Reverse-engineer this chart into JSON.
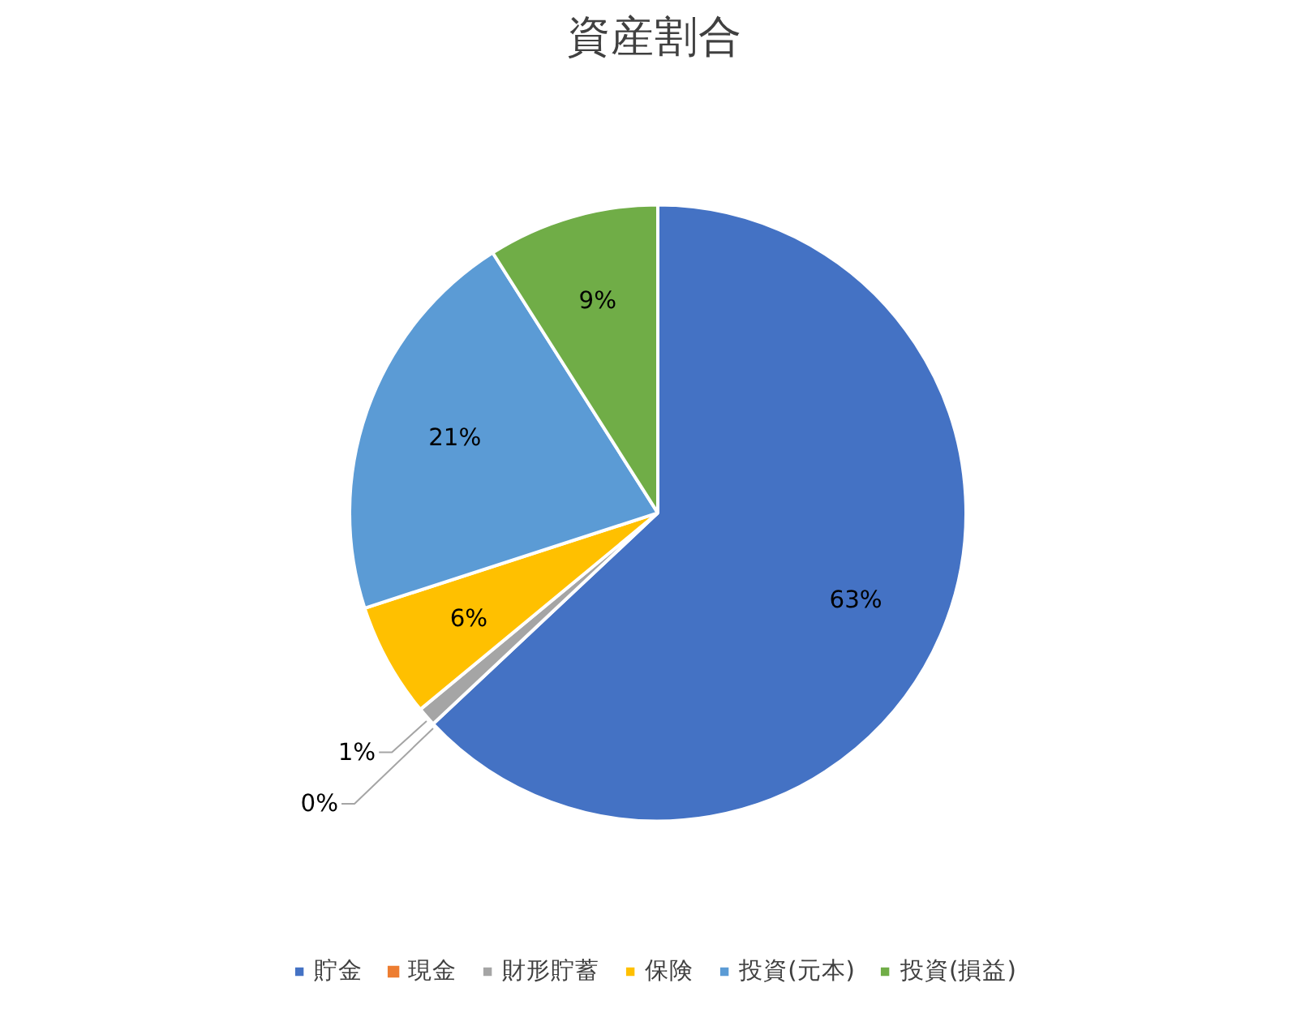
{
  "chart_data": {
    "type": "pie",
    "title": "資産割合",
    "categories": [
      "貯金",
      "現金",
      "財形貯蓄",
      "保険",
      "投資(元本)",
      "投資(損益)"
    ],
    "values": [
      63,
      0,
      1,
      6,
      21,
      9
    ],
    "colors": [
      "#4472c4",
      "#ed7d31",
      "#a5a5a5",
      "#ffc000",
      "#5b9bd5",
      "#70ad47"
    ],
    "value_labels": [
      "63%",
      "0%",
      "1%",
      "6%",
      "21%",
      "9%"
    ],
    "legend": "bottom"
  }
}
